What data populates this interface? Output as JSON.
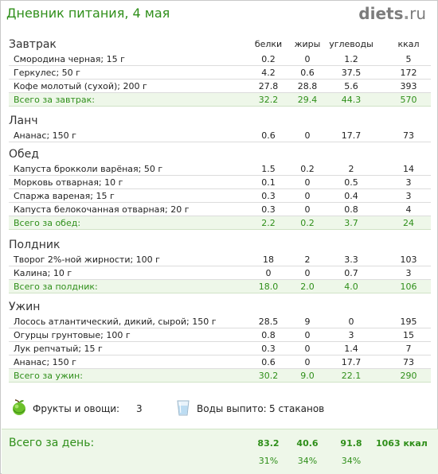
{
  "header": {
    "title": "Дневник питания, 4 мая",
    "logo_main": "diets",
    "logo_dot": ".",
    "logo_tld": "ru"
  },
  "columns": {
    "proteins": "белки",
    "fats": "жиры",
    "carbs": "углеводы",
    "kcal": "ккал"
  },
  "meals": [
    {
      "title": "Завтрак",
      "items": [
        {
          "name": "Смородина черная; 15 г",
          "p": "0.2",
          "f": "0",
          "c": "1.2",
          "k": "5"
        },
        {
          "name": "Геркулес; 50 г",
          "p": "4.2",
          "f": "0.6",
          "c": "37.5",
          "k": "172"
        },
        {
          "name": "Кофе молотый (сухой); 200 г",
          "p": "27.8",
          "f": "28.8",
          "c": "5.6",
          "k": "393"
        }
      ],
      "total": {
        "name": "Всего за завтрак:",
        "p": "32.2",
        "f": "29.4",
        "c": "44.3",
        "k": "570"
      }
    },
    {
      "title": "Ланч",
      "items": [
        {
          "name": "Ананас; 150 г",
          "p": "0.6",
          "f": "0",
          "c": "17.7",
          "k": "73"
        }
      ],
      "total": null
    },
    {
      "title": "Обед",
      "items": [
        {
          "name": "Капуста брокколи варёная; 50 г",
          "p": "1.5",
          "f": "0.2",
          "c": "2",
          "k": "14"
        },
        {
          "name": "Морковь отварная; 10 г",
          "p": "0.1",
          "f": "0",
          "c": "0.5",
          "k": "3"
        },
        {
          "name": "Спаржа вареная; 15 г",
          "p": "0.3",
          "f": "0",
          "c": "0.4",
          "k": "3"
        },
        {
          "name": "Капуста белокочанная отварная; 20 г",
          "p": "0.3",
          "f": "0",
          "c": "0.8",
          "k": "4"
        }
      ],
      "total": {
        "name": "Всего за обед:",
        "p": "2.2",
        "f": "0.2",
        "c": "3.7",
        "k": "24"
      }
    },
    {
      "title": "Полдник",
      "items": [
        {
          "name": "Творог 2%-ной жирности; 100 г",
          "p": "18",
          "f": "2",
          "c": "3.3",
          "k": "103"
        },
        {
          "name": "Калина; 10 г",
          "p": "0",
          "f": "0",
          "c": "0.7",
          "k": "3"
        }
      ],
      "total": {
        "name": "Всего за полдник:",
        "p": "18.0",
        "f": "2.0",
        "c": "4.0",
        "k": "106"
      }
    },
    {
      "title": "Ужин",
      "items": [
        {
          "name": "Лосось атлантический, дикий, сырой; 150 г",
          "p": "28.5",
          "f": "9",
          "c": "0",
          "k": "195"
        },
        {
          "name": "Огурцы грунтовые; 100 г",
          "p": "0.8",
          "f": "0",
          "c": "3",
          "k": "15"
        },
        {
          "name": "Лук репчатый; 15 г",
          "p": "0.3",
          "f": "0",
          "c": "1.4",
          "k": "7"
        },
        {
          "name": "Ананас; 150 г",
          "p": "0.6",
          "f": "0",
          "c": "17.7",
          "k": "73"
        }
      ],
      "total": {
        "name": "Всего за ужин:",
        "p": "30.2",
        "f": "9.0",
        "c": "22.1",
        "k": "290"
      }
    }
  ],
  "extras": {
    "fruits_label": "Фрукты и овощи:",
    "fruits_value": "3",
    "water_label": "Воды выпито:",
    "water_value": "5 стаканов",
    "apple_icon": "apple-icon",
    "glass_icon": "glass-icon"
  },
  "day_total": {
    "label": "Всего за день:",
    "p": "83.2",
    "f": "40.6",
    "c": "91.8",
    "k": "1063 ккал",
    "p_pct": "31%",
    "f_pct": "34%",
    "c_pct": "34%"
  },
  "colors": {
    "accent_green": "#2f8f1a",
    "total_bg": "#eef7e9",
    "logo_gray": "#7c7c7c"
  }
}
